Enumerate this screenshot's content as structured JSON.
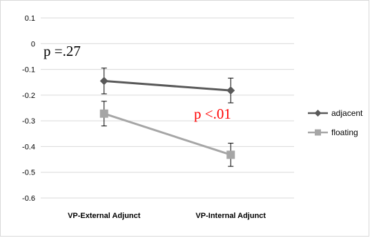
{
  "chart_data": {
    "type": "line",
    "categories": [
      "VP-External Adjunct",
      "VP-Internal Adjunct"
    ],
    "ylim": [
      -0.6,
      0.1
    ],
    "yticks": [
      "0.1",
      "0",
      "-0.1",
      "-0.2",
      "-0.3",
      "-0.4",
      "-0.5",
      "-0.6"
    ],
    "ytick_values": [
      0.1,
      0,
      -0.1,
      -0.2,
      -0.3,
      -0.4,
      -0.5,
      -0.6
    ],
    "grid": true,
    "legend_position": "right",
    "series": [
      {
        "name": "adjacent",
        "marker": "diamond",
        "color": "#595959",
        "values": [
          -0.145,
          -0.182
        ],
        "error": [
          0.05,
          0.048
        ]
      },
      {
        "name": "floating",
        "marker": "square",
        "color": "#a6a6a6",
        "values": [
          -0.272,
          -0.432
        ],
        "error": [
          0.048,
          0.045
        ]
      }
    ],
    "annotations": [
      {
        "text": "p =.27",
        "color": "#000000"
      },
      {
        "text": "p <.01",
        "color": "#ff0000"
      }
    ]
  }
}
